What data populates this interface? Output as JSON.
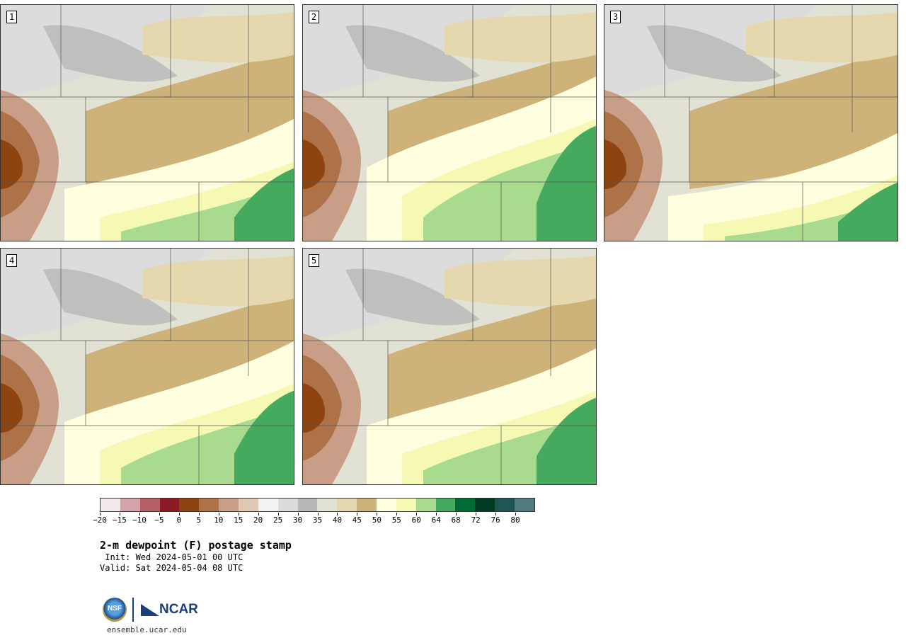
{
  "panels": [
    {
      "label": "1",
      "variant": 0
    },
    {
      "label": "2",
      "variant": 1
    },
    {
      "label": "3",
      "variant": 2
    },
    {
      "label": "4",
      "variant": 3
    },
    {
      "label": "5",
      "variant": 4
    }
  ],
  "colorbar": {
    "colors": [
      "#f3e9eb",
      "#d4a3aa",
      "#b45f66",
      "#8b1a22",
      "#8e4411",
      "#ad7247",
      "#c89e86",
      "#e0c8b4",
      "#f2f2f2",
      "#dcdcdc",
      "#b8b8b8",
      "#e2e2d4",
      "#e6d8ae",
      "#cdb27a",
      "#ffffe0",
      "#f5f9b4",
      "#a8db8e",
      "#45aa5e",
      "#006a35",
      "#003a22",
      "#1d5555",
      "#507a7e"
    ],
    "ticks": [
      "−20",
      "−15",
      "−10",
      "−5",
      "0",
      "5",
      "10",
      "15",
      "20",
      "25",
      "30",
      "35",
      "40",
      "45",
      "50",
      "55",
      "60",
      "64",
      "68",
      "72",
      "76",
      "80"
    ]
  },
  "title": "2-m dewpoint (F) postage stamp",
  "init": " Init: Wed 2024-05-01 00 UTC",
  "valid": "Valid: Sat 2024-05-04 08 UTC",
  "logos": {
    "nsf": "NSF",
    "ncar": "NCAR"
  },
  "url": "ensemble.ucar.edu"
}
